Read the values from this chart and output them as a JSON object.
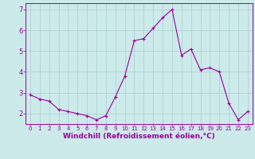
{
  "x": [
    0,
    1,
    2,
    3,
    4,
    5,
    6,
    7,
    8,
    9,
    10,
    11,
    12,
    13,
    14,
    15,
    16,
    17,
    18,
    19,
    20,
    21,
    22,
    23
  ],
  "y": [
    2.9,
    2.7,
    2.6,
    2.2,
    2.1,
    2.0,
    1.9,
    1.7,
    1.9,
    2.8,
    3.8,
    5.5,
    5.6,
    6.1,
    6.6,
    7.0,
    4.8,
    5.1,
    4.1,
    4.2,
    4.0,
    2.5,
    1.7,
    2.1
  ],
  "line_color": "#990099",
  "marker": "+",
  "marker_size": 3,
  "bg_color": "#cceaea",
  "grid_color": "#aacccc",
  "xlabel": "Windchill (Refroidissement éolien,°C)",
  "xlim": [
    -0.5,
    23.5
  ],
  "ylim": [
    1.5,
    7.3
  ],
  "yticks": [
    2,
    3,
    4,
    5,
    6,
    7
  ],
  "xticks": [
    0,
    1,
    2,
    3,
    4,
    5,
    6,
    7,
    8,
    9,
    10,
    11,
    12,
    13,
    14,
    15,
    16,
    17,
    18,
    19,
    20,
    21,
    22,
    23
  ],
  "xlabel_color": "#990099",
  "tick_color": "#990099",
  "axis_color": "#990099",
  "xlabel_fontsize": 6.5,
  "xtick_fontsize": 5.0,
  "ytick_fontsize": 6.0,
  "linewidth": 0.8,
  "markeredgewidth": 0.8
}
